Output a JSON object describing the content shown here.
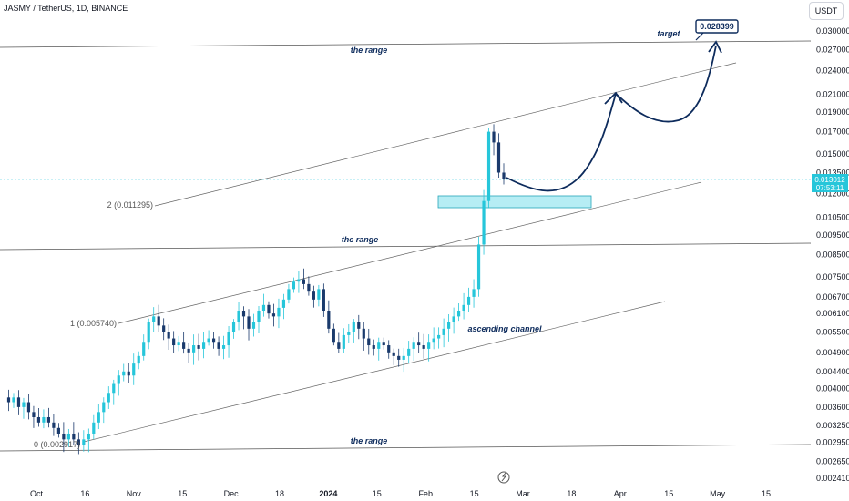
{
  "header": {
    "title": "JASMY / TetherUS, 1D, BINANCE",
    "currency": "USDT"
  },
  "price_tag": {
    "value": "0.013012",
    "countdown": "07:53:11"
  },
  "target_label": "0.028399",
  "annotations": {
    "target": "target",
    "range_top": "the range",
    "range_mid": "the range",
    "range_bottom": "the range",
    "channel": "ascending channel"
  },
  "fib_levels": [
    {
      "label": "2 (0.011295)",
      "price": 0.011295
    },
    {
      "label": "1 (0.005740)",
      "price": 0.00574
    },
    {
      "label": "0 (0.002917)",
      "price": 0.002917
    }
  ],
  "chart_data": {
    "type": "candlestick",
    "title": "JASMY / TetherUS, 1D, BINANCE",
    "y_scale": "log",
    "ylim": [
      0.00235,
      0.036
    ],
    "y_ticks": [
      "0.030000",
      "0.027000",
      "0.024000",
      "0.021000",
      "0.019000",
      "0.017000",
      "0.015000",
      "0.013500",
      "0.012000",
      "0.010500",
      "0.009500",
      "0.008500",
      "0.007500",
      "0.006700",
      "0.006100",
      "0.005500",
      "0.004900",
      "0.004400",
      "0.004000",
      "0.003600",
      "0.003250",
      "0.002950",
      "0.002650",
      "0.002410"
    ],
    "x_ticks": [
      "Oct",
      "16",
      "Nov",
      "15",
      "Dec",
      "18",
      "2024",
      "15",
      "Feb",
      "15",
      "Mar",
      "18",
      "Apr",
      "15",
      "May",
      "15"
    ],
    "x_bold": "2024",
    "colors": {
      "up": "#26c6da",
      "down": "#1a3a6c"
    },
    "series": [
      {
        "name": "JASMY/USDT",
        "ohlc_path": [
          0.0038,
          0.0037,
          0.0038,
          0.0036,
          0.0037,
          0.0035,
          0.0034,
          0.0033,
          0.0034,
          0.0033,
          0.0032,
          0.0031,
          0.003,
          0.0031,
          0.003,
          0.0029,
          0.003,
          0.0031,
          0.0033,
          0.0035,
          0.0037,
          0.0039,
          0.0041,
          0.0043,
          0.0044,
          0.0043,
          0.0046,
          0.0048,
          0.0052,
          0.0058,
          0.006,
          0.0057,
          0.0055,
          0.0053,
          0.0051,
          0.0052,
          0.005,
          0.0049,
          0.0051,
          0.005,
          0.0052,
          0.0053,
          0.0052,
          0.005,
          0.0051,
          0.0055,
          0.0058,
          0.0062,
          0.006,
          0.0056,
          0.0058,
          0.0062,
          0.0064,
          0.0061,
          0.006,
          0.0063,
          0.0066,
          0.007,
          0.0073,
          0.0074,
          0.0072,
          0.0069,
          0.0066,
          0.007,
          0.0062,
          0.0056,
          0.0052,
          0.005,
          0.0054,
          0.0055,
          0.0058,
          0.0056,
          0.0053,
          0.0051,
          0.005,
          0.0052,
          0.0051,
          0.0049,
          0.0048,
          0.0047,
          0.0048,
          0.005,
          0.0052,
          0.0051,
          0.005,
          0.0052,
          0.0053,
          0.0054,
          0.0056,
          0.0058,
          0.006,
          0.0062,
          0.0064,
          0.0067,
          0.007,
          0.009,
          0.0115,
          0.017,
          0.016,
          0.0135,
          0.013
        ],
        "last": 0.013012
      }
    ],
    "target_value": 0.028399
  }
}
